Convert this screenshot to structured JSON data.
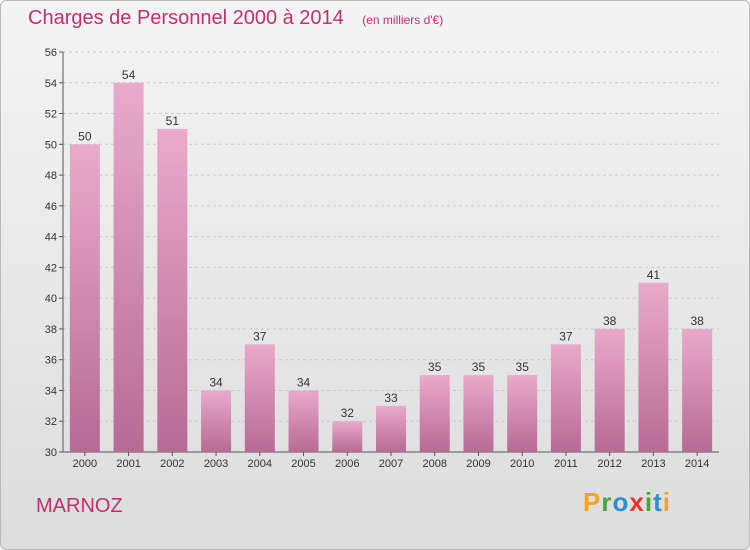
{
  "header": {
    "title": "Charges de Personnel 2000 à 2014",
    "subtitle": "(en milliers d'€)"
  },
  "footer": {
    "commune": "MARNOZ",
    "logo_text": "Proxiti"
  },
  "colors": {
    "bar_top": "#e9aacb",
    "bar_bottom": "#b86a94",
    "title": "#c0306e",
    "logo": [
      "#f7a21b",
      "#49a53b",
      "#2b8fd0",
      "#e8342c",
      "#49a53b",
      "#2b8fd0",
      "#f7a21b"
    ]
  },
  "chart_data": {
    "type": "bar",
    "categories": [
      "2000",
      "2001",
      "2002",
      "2003",
      "2004",
      "2005",
      "2006",
      "2007",
      "2008",
      "2009",
      "2010",
      "2011",
      "2012",
      "2013",
      "2014"
    ],
    "values": [
      50,
      54,
      51,
      34,
      37,
      34,
      32,
      33,
      35,
      35,
      35,
      37,
      38,
      41,
      38
    ],
    "ylim": [
      30,
      56
    ],
    "yticks": [
      30,
      32,
      34,
      36,
      38,
      40,
      42,
      44,
      46,
      48,
      50,
      52,
      54,
      56
    ],
    "grid": true,
    "xlabel": "",
    "ylabel": ""
  }
}
